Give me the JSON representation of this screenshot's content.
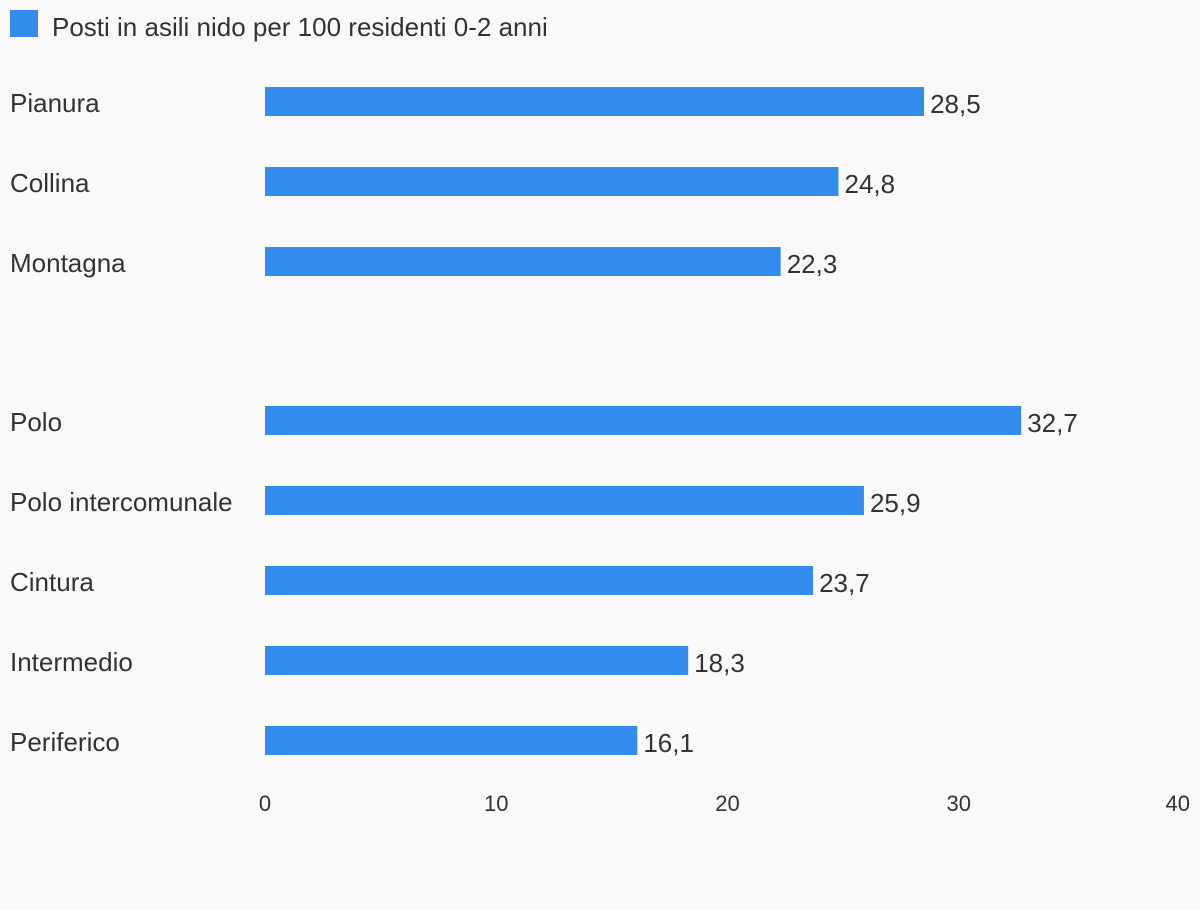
{
  "chart_data": {
    "type": "bar",
    "orientation": "horizontal",
    "legend": {
      "position": "top-left",
      "label": "Posti in asili nido per 100 residenti 0-2 anni"
    },
    "colors": {
      "bar": "#338ced",
      "text": "#333333",
      "background": "#f9f9f9"
    },
    "groups": [
      {
        "categories": [
          "Pianura",
          "Collina",
          "Montagna"
        ]
      },
      {
        "categories": [
          "Polo",
          "Polo intercomunale",
          "Cintura",
          "Intermedio",
          "Periferico"
        ]
      }
    ],
    "categories": [
      "Pianura",
      "Collina",
      "Montagna",
      "Polo",
      "Polo intercomunale",
      "Cintura",
      "Intermedio",
      "Periferico"
    ],
    "values": [
      28.5,
      24.8,
      22.3,
      32.7,
      25.9,
      23.7,
      18.3,
      16.1
    ],
    "value_labels": [
      "28,5",
      "24,8",
      "22,3",
      "32,7",
      "25,9",
      "23,7",
      "18,3",
      "16,1"
    ],
    "xlim": [
      0,
      40
    ],
    "xticks": [
      0,
      10,
      20,
      30,
      40
    ],
    "xtick_labels": [
      "0",
      "10",
      "20",
      "30",
      "40"
    ],
    "grid": false
  }
}
